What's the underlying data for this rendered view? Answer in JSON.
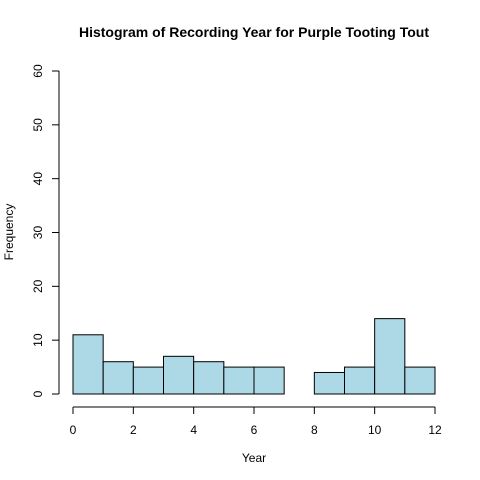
{
  "chart_data": {
    "type": "bar",
    "title": "Histogram of Recording Year for Purple Tooting Tout",
    "xlabel": "Year",
    "ylabel": "Frequency",
    "bins": [
      {
        "start": 0,
        "end": 1,
        "count": 11
      },
      {
        "start": 1,
        "end": 2,
        "count": 6
      },
      {
        "start": 2,
        "end": 3,
        "count": 5
      },
      {
        "start": 3,
        "end": 4,
        "count": 7
      },
      {
        "start": 4,
        "end": 5,
        "count": 6
      },
      {
        "start": 5,
        "end": 6,
        "count": 5
      },
      {
        "start": 6,
        "end": 7,
        "count": 5
      },
      {
        "start": 7,
        "end": 8,
        "count": 0
      },
      {
        "start": 8,
        "end": 9,
        "count": 4
      },
      {
        "start": 9,
        "end": 10,
        "count": 5
      },
      {
        "start": 10,
        "end": 11,
        "count": 14
      },
      {
        "start": 11,
        "end": 12,
        "count": 5
      }
    ],
    "xlim": [
      0,
      12
    ],
    "ylim": [
      0,
      60
    ],
    "x_ticks": [
      0,
      2,
      4,
      6,
      8,
      10,
      12
    ],
    "y_ticks": [
      0,
      10,
      20,
      30,
      40,
      50,
      60
    ],
    "bar_fill": "#add8e6",
    "bar_stroke": "#000000",
    "grid": false
  }
}
